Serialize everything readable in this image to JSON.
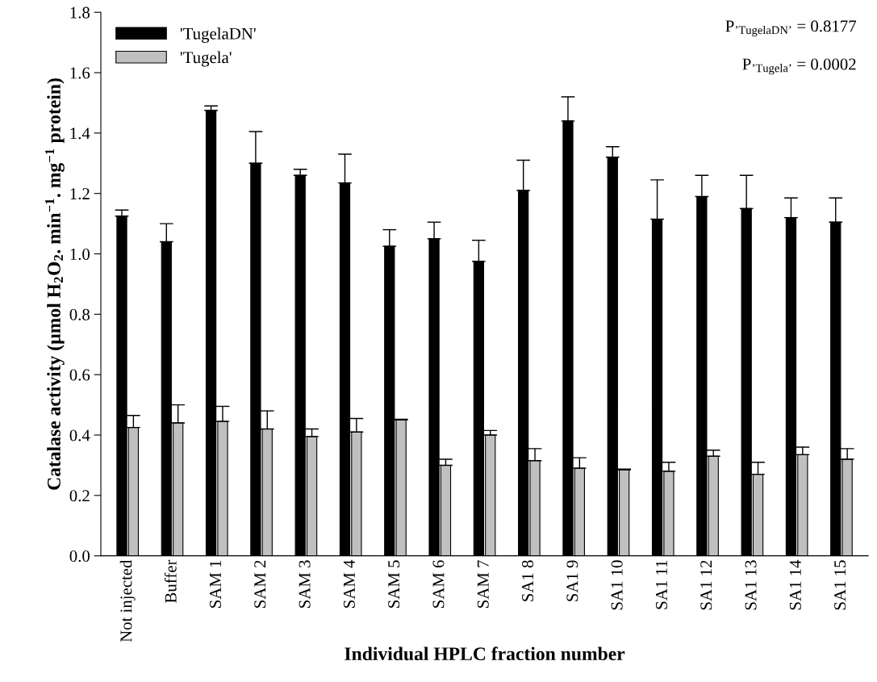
{
  "chart_data": {
    "type": "bar",
    "xlabel": "Individual HPLC fraction number",
    "ylabel": "Catalase activity (µmol H$_{2}$O$_{2}$. min$^{−1}$. mg$^{−1}$ protein)",
    "categories": [
      "Not injected",
      "Buffer",
      "SAM 1",
      "SAM 2",
      "SAM 3",
      "SAM 4",
      "SAM 5",
      "SAM 6",
      "SAM 7",
      "SA1 8",
      "SA1 9",
      "SA1 10",
      "SA1 11",
      "SA1 12",
      "SA1 13",
      "SA1 14",
      "SA1 15"
    ],
    "series": [
      {
        "name": "'TugelaDN'",
        "color": "#000000",
        "values": [
          1.125,
          1.04,
          1.475,
          1.3,
          1.26,
          1.235,
          1.025,
          1.05,
          0.975,
          1.21,
          1.44,
          1.32,
          1.115,
          1.19,
          1.15,
          1.12,
          1.105
        ],
        "errors": [
          [
            1.125,
            1.145
          ],
          [
            1.04,
            1.1
          ],
          [
            1.475,
            1.49
          ],
          [
            1.3,
            1.405
          ],
          [
            1.26,
            1.28
          ],
          [
            1.235,
            1.33
          ],
          [
            1.025,
            1.08
          ],
          [
            1.05,
            1.105
          ],
          [
            0.975,
            1.045
          ],
          [
            1.21,
            1.31
          ],
          [
            1.44,
            1.52
          ],
          [
            1.32,
            1.355
          ],
          [
            1.115,
            1.245
          ],
          [
            1.19,
            1.26
          ],
          [
            1.15,
            1.26
          ],
          [
            1.12,
            1.185
          ],
          [
            1.105,
            1.185
          ]
        ]
      },
      {
        "name": "'Tugela'",
        "color": "#c0c0c0",
        "values": [
          0.425,
          0.44,
          0.445,
          0.42,
          0.395,
          0.41,
          0.45,
          0.3,
          0.4,
          0.315,
          0.29,
          0.285,
          0.28,
          0.33,
          0.27,
          0.335,
          0.32
        ],
        "errors": [
          [
            0.425,
            0.465
          ],
          [
            0.44,
            0.5
          ],
          [
            0.445,
            0.495
          ],
          [
            0.42,
            0.48
          ],
          [
            0.395,
            0.42
          ],
          [
            0.41,
            0.455
          ],
          [
            0.45,
            0.452
          ],
          [
            0.3,
            0.32
          ],
          [
            0.4,
            0.415
          ],
          [
            0.315,
            0.355
          ],
          [
            0.29,
            0.325
          ],
          [
            0.285,
            0.287
          ],
          [
            0.28,
            0.31
          ],
          [
            0.33,
            0.35
          ],
          [
            0.27,
            0.31
          ],
          [
            0.335,
            0.36
          ],
          [
            0.32,
            0.355
          ]
        ]
      }
    ],
    "ylim": [
      0,
      1.8
    ],
    "yticks": [
      {
        "value": 0,
        "label": "0.0"
      },
      {
        "value": 0.2,
        "label": "0.2"
      },
      {
        "value": 0.4,
        "label": "0.4"
      },
      {
        "value": 0.6,
        "label": "0.6"
      },
      {
        "value": 0.8,
        "label": "0.8"
      },
      {
        "value": 1.0,
        "label": "1.0"
      },
      {
        "value": 1.2,
        "label": "1.2"
      },
      {
        "value": 1.4,
        "label": "1.4"
      },
      {
        "value": 1.6,
        "label": "1.6"
      },
      {
        "value": 1.8,
        "label": "1.8"
      }
    ],
    "annotations": [
      "P$_{’TugelaDN’}$ = 0.8177",
      "P$_{’Tugela’}$ = 0.0002"
    ],
    "legend": "top left",
    "grid": false
  }
}
